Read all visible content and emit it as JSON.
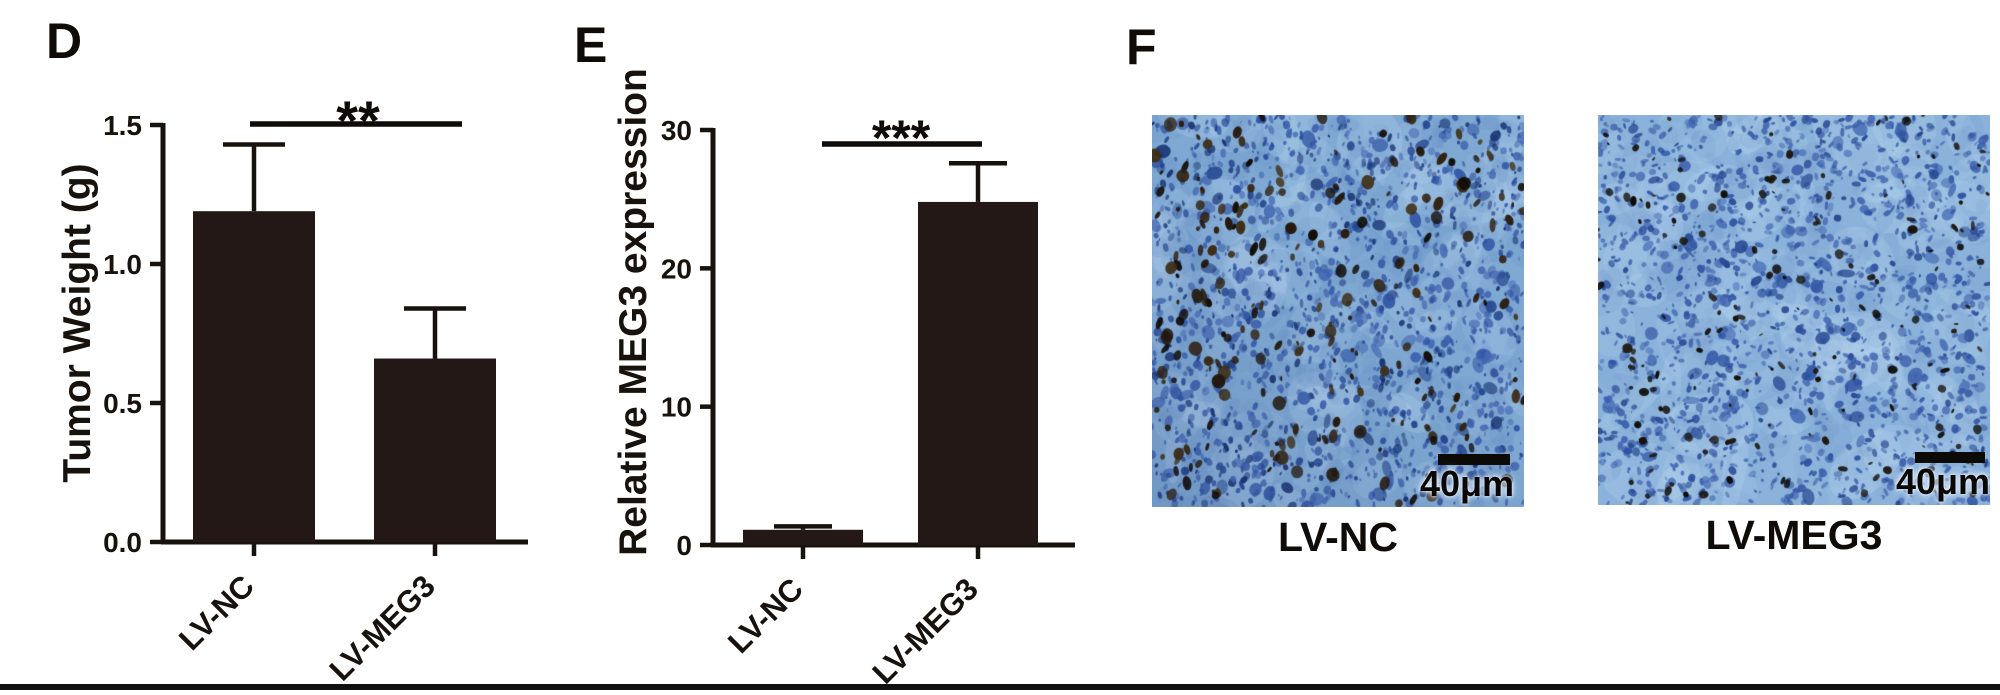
{
  "colors": {
    "bar": "#231815",
    "axis": "#18120e",
    "significance": "#0e0b09",
    "micro_base_left": "#7fa9d3",
    "micro_base_right": "#8ab2da",
    "scale_bar": "#0c0a07",
    "bottom_rule": "#101010"
  },
  "panels": {
    "d": {
      "label": "D"
    },
    "e": {
      "label": "E"
    },
    "f": {
      "label": "F",
      "micrographs": [
        {
          "caption": "LV-NC",
          "scale_bar_label": "40μm"
        },
        {
          "caption": "LV-MEG3",
          "scale_bar_label": "40μm"
        }
      ]
    }
  },
  "chart_data": [
    {
      "type": "bar",
      "panel": "D",
      "title": "",
      "categories": [
        "LV-NC",
        "LV-MEG3"
      ],
      "values": [
        1.19,
        0.66
      ],
      "errors_plus": [
        0.24,
        0.18
      ],
      "xlabel": "",
      "ylabel": "Tumor Weight (g)",
      "ylim": [
        0,
        1.5
      ],
      "yticks": [
        0,
        0.5,
        1.0,
        1.5
      ],
      "ytick_labels": [
        "0.0",
        "0.5",
        "1.0",
        "1.5"
      ],
      "grid": false,
      "legend": null,
      "significance": {
        "label": "**",
        "between": [
          "LV-NC",
          "LV-MEG3"
        ]
      }
    },
    {
      "type": "bar",
      "panel": "E",
      "title": "",
      "categories": [
        "LV-NC",
        "LV-MEG3"
      ],
      "values": [
        1.1,
        24.8
      ],
      "errors_plus": [
        0.25,
        2.8
      ],
      "xlabel": "",
      "ylabel": "Relative MEG3 expression",
      "ylim": [
        0,
        30
      ],
      "yticks": [
        0,
        10,
        20,
        30
      ],
      "ytick_labels": [
        "0",
        "10",
        "20",
        "30"
      ],
      "grid": false,
      "legend": null,
      "significance": {
        "label": "***",
        "between": [
          "LV-NC",
          "LV-MEG3"
        ]
      }
    }
  ]
}
